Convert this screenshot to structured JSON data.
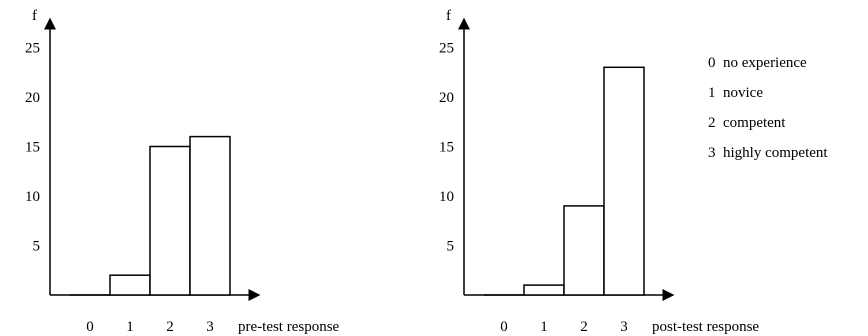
{
  "chart_data": [
    {
      "type": "bar",
      "ylabel": "f",
      "xlabel": "pre-test response",
      "categories": [
        "0",
        "1",
        "2",
        "3"
      ],
      "values": [
        0,
        2,
        15,
        16
      ],
      "yticks": [
        "5",
        "10",
        "15",
        "20",
        "25"
      ],
      "ylim": [
        0,
        28
      ],
      "grid": false
    },
    {
      "type": "bar",
      "ylabel": "f",
      "xlabel": "post-test response",
      "categories": [
        "0",
        "1",
        "2",
        "3"
      ],
      "values": [
        0,
        1,
        9,
        23
      ],
      "yticks": [
        "5",
        "10",
        "15",
        "20",
        "25"
      ],
      "ylim": [
        0,
        28
      ],
      "grid": false
    }
  ],
  "legend": [
    {
      "code": "0",
      "label": "no experience"
    },
    {
      "code": "1",
      "label": "novice"
    },
    {
      "code": "2",
      "label": "competent"
    },
    {
      "code": "3",
      "label": "highly competent"
    }
  ]
}
